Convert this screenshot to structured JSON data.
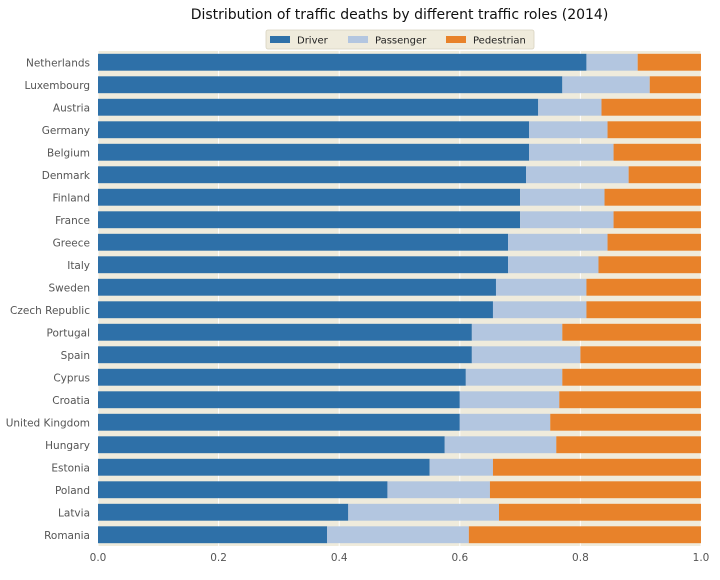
{
  "chart_data": {
    "type": "bar",
    "orientation": "horizontal",
    "stacked": true,
    "title": "Distribution of traffic deaths by different traffic roles (2014)",
    "xlabel": "",
    "ylabel": "",
    "xlim": [
      0,
      1.0
    ],
    "xticks": [
      "0.0",
      "0.2",
      "0.4",
      "0.6",
      "0.8",
      "1.0"
    ],
    "xtick_values": [
      0,
      0.2,
      0.4,
      0.6,
      0.8,
      1.0
    ],
    "grid": true,
    "legend_position": "top-center",
    "categories": [
      "Netherlands",
      "Luxembourg",
      "Austria",
      "Germany",
      "Belgium",
      "Denmark",
      "Finland",
      "France",
      "Greece",
      "Italy",
      "Sweden",
      "Czech Republic",
      "Portugal",
      "Spain",
      "Cyprus",
      "Croatia",
      "United Kingdom",
      "Hungary",
      "Estonia",
      "Poland",
      "Latvia",
      "Romania"
    ],
    "series": [
      {
        "name": "Driver",
        "color": "#2e70a8",
        "values": [
          0.81,
          0.77,
          0.73,
          0.715,
          0.715,
          0.71,
          0.7,
          0.7,
          0.68,
          0.68,
          0.66,
          0.655,
          0.62,
          0.62,
          0.61,
          0.6,
          0.6,
          0.575,
          0.55,
          0.48,
          0.415,
          0.38
        ]
      },
      {
        "name": "Passenger",
        "color": "#b3c6e0",
        "values": [
          0.085,
          0.145,
          0.105,
          0.13,
          0.14,
          0.17,
          0.14,
          0.155,
          0.165,
          0.15,
          0.15,
          0.155,
          0.15,
          0.18,
          0.16,
          0.165,
          0.15,
          0.185,
          0.105,
          0.17,
          0.25,
          0.235
        ]
      },
      {
        "name": "Pedestrian",
        "color": "#e8822a",
        "values": [
          0.105,
          0.085,
          0.165,
          0.155,
          0.145,
          0.12,
          0.16,
          0.145,
          0.155,
          0.17,
          0.19,
          0.19,
          0.23,
          0.2,
          0.23,
          0.235,
          0.25,
          0.24,
          0.345,
          0.35,
          0.335,
          0.385
        ]
      }
    ],
    "colors": {
      "plot_bg": "#efebdc",
      "grid": "#ffffff",
      "text": "#555555",
      "title": "#111111"
    }
  }
}
